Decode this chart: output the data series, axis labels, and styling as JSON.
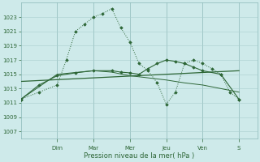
{
  "xlabel": "Pression niveau de la mer( hPa )",
  "bg_color": "#ceeaea",
  "grid_color": "#aacece",
  "line_color": "#2d6636",
  "day_labels": [
    "Dim",
    "Mar",
    "Mer",
    "Jeu",
    "Ven",
    "S"
  ],
  "day_tick_x": [
    2,
    4,
    6,
    8,
    10,
    12
  ],
  "ylim": [
    1006.0,
    1025.0
  ],
  "yticks": [
    1007,
    1009,
    1011,
    1013,
    1015,
    1017,
    1019,
    1021,
    1023
  ],
  "xlim": [
    0,
    13.0
  ],
  "dotted_x": [
    0,
    1,
    2,
    2.5,
    3,
    3.5,
    4,
    4.5,
    5,
    5.5,
    6,
    6.5,
    7,
    7.5,
    8,
    8.5,
    9,
    9.5,
    10,
    10.5,
    11,
    11.5,
    12
  ],
  "dotted_y": [
    1011.5,
    1012.5,
    1013.5,
    1017.0,
    1021.0,
    1022.0,
    1023.0,
    1023.5,
    1024.2,
    1021.5,
    1019.5,
    1016.5,
    1015.5,
    1013.8,
    1010.8,
    1012.5,
    1016.5,
    1017.0,
    1016.5,
    1015.8,
    1015.0,
    1012.5,
    1011.5
  ],
  "solid_markers_x": [
    0,
    1,
    2,
    3,
    4,
    5,
    5.5,
    6,
    6.5,
    7,
    7.5,
    8,
    8.5,
    9,
    9.5,
    10,
    11,
    12
  ],
  "solid_markers_y": [
    1011.5,
    1013.5,
    1014.8,
    1015.2,
    1015.5,
    1015.5,
    1015.3,
    1015.2,
    1015.0,
    1015.8,
    1016.5,
    1017.0,
    1016.8,
    1016.5,
    1016.0,
    1015.5,
    1015.0,
    1011.5
  ],
  "trend_x": [
    0,
    12
  ],
  "trend_y": [
    1014.0,
    1015.5
  ],
  "solid2_x": [
    0,
    2,
    4,
    5,
    6,
    7,
    8,
    9,
    10,
    12
  ],
  "solid2_y": [
    1011.5,
    1015.0,
    1015.5,
    1015.3,
    1014.8,
    1014.5,
    1014.2,
    1013.8,
    1013.5,
    1012.5
  ]
}
